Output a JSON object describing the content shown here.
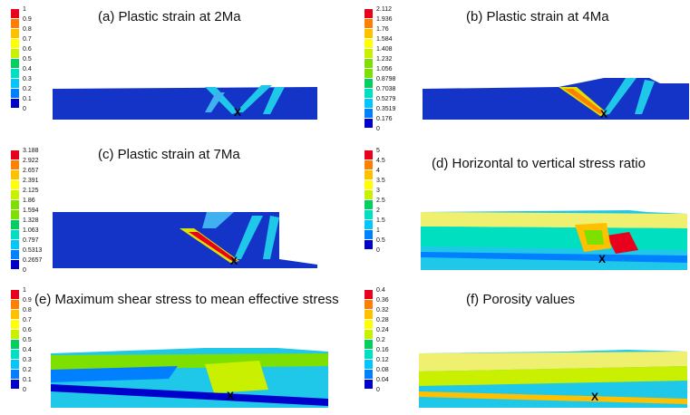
{
  "panels": [
    {
      "id": "a",
      "title": "(a) Plastic strain at 2Ma",
      "legend": [
        "1",
        "0.9",
        "0.8",
        "0.7",
        "0.6",
        "0.5",
        "0.4",
        "0.3",
        "0.2",
        "0.1",
        "0"
      ],
      "marker": "X"
    },
    {
      "id": "b",
      "title": "(b) Plastic strain at 4Ma",
      "legend": [
        "2.112",
        "1.936",
        "1.76",
        "1.584",
        "1.408",
        "1.232",
        "1.056",
        "0.8798",
        "0.7038",
        "0.5279",
        "0.3519",
        "0.176",
        "0"
      ],
      "marker": "X"
    },
    {
      "id": "c",
      "title": "(c) Plastic strain at 7Ma",
      "legend": [
        "3.188",
        "2.922",
        "2.657",
        "2.391",
        "2.125",
        "1.86",
        "1.594",
        "1.328",
        "1.063",
        "0.797",
        "0.5313",
        "0.2657",
        "0"
      ],
      "marker": "X"
    },
    {
      "id": "d",
      "title": "(d) Horizontal to vertical stress ratio",
      "legend": [
        "5",
        "4.5",
        "4",
        "3.5",
        "3",
        "2.5",
        "2",
        "1.5",
        "1",
        "0.5",
        "0"
      ],
      "marker": "X"
    },
    {
      "id": "e",
      "title": "(e) Maximum shear stress to mean effective  stress",
      "legend": [
        "1",
        "0.9",
        "0.8",
        "0.7",
        "0.6",
        "0.5",
        "0.4",
        "0.3",
        "0.2",
        "0.1",
        "0"
      ],
      "marker": "X"
    },
    {
      "id": "f",
      "title": "(f) Porosity values",
      "legend": [
        "0.4",
        "0.36",
        "0.32",
        "0.28",
        "0.24",
        "0.2",
        "0.16",
        "0.12",
        "0.08",
        "0.04",
        "0"
      ],
      "marker": "X"
    }
  ],
  "colors": {
    "scale": [
      "#e8001c",
      "#ff7f00",
      "#ffc000",
      "#ffff00",
      "#c8f000",
      "#7de000",
      "#00d060",
      "#00e0c0",
      "#00c8ff",
      "#0080ff",
      "#0000cc"
    ],
    "deep_blue": "#1434c8",
    "cyan": "#1fc8e8",
    "light_yellow": "#f0f070"
  }
}
